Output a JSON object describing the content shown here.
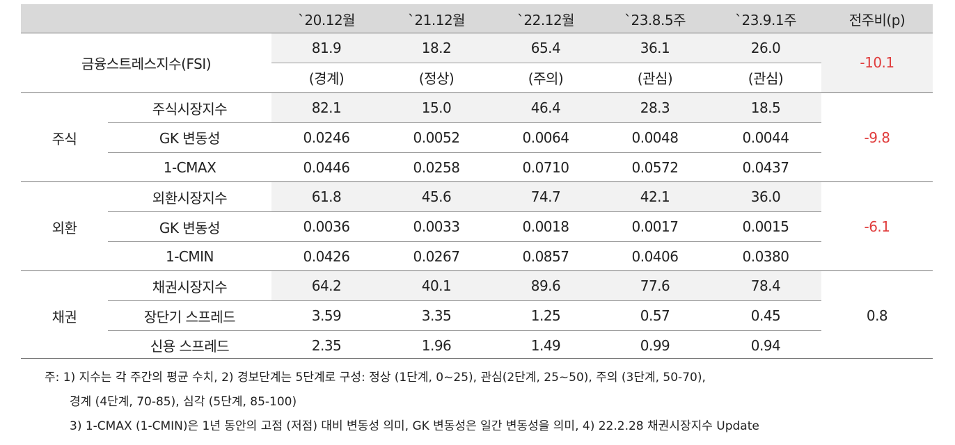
{
  "table": {
    "columns": [
      "`20.12월",
      "`21.12월",
      "`22.12월",
      "`23.8.5주",
      "`23.9.1주"
    ],
    "change_header": "전주비(p)",
    "fsi": {
      "label": "금융스트레스지수(FSI)",
      "values": [
        "81.9",
        "18.2",
        "65.4",
        "36.1",
        "26.0"
      ],
      "stages": [
        "(경계)",
        "(정상)",
        "(주의)",
        "(관심)",
        "(관심)"
      ],
      "change": "-10.1"
    },
    "sections": [
      {
        "group": "주식",
        "change": "-9.8",
        "rows": [
          {
            "label": "주식시장지수",
            "values": [
              "82.1",
              "15.0",
              "46.4",
              "28.3",
              "18.5"
            ]
          },
          {
            "label": "GK 변동성",
            "values": [
              "0.0246",
              "0.0052",
              "0.0064",
              "0.0048",
              "0.0044"
            ]
          },
          {
            "label": "1-CMAX",
            "values": [
              "0.0446",
              "0.0258",
              "0.0710",
              "0.0572",
              "0.0437"
            ]
          }
        ]
      },
      {
        "group": "외환",
        "change": "-6.1",
        "rows": [
          {
            "label": "외환시장지수",
            "values": [
              "61.8",
              "45.6",
              "74.7",
              "42.1",
              "36.0"
            ]
          },
          {
            "label": "GK 변동성",
            "values": [
              "0.0036",
              "0.0033",
              "0.0018",
              "0.0017",
              "0.0015"
            ]
          },
          {
            "label": "1-CMIN",
            "values": [
              "0.0426",
              "0.0267",
              "0.0857",
              "0.0406",
              "0.0380"
            ]
          }
        ]
      },
      {
        "group": "채권",
        "change": "0.8",
        "rows": [
          {
            "label": "채권시장지수",
            "values": [
              "64.2",
              "40.1",
              "89.6",
              "77.6",
              "78.4"
            ]
          },
          {
            "label": "장단기 스프레드",
            "values": [
              "3.59",
              "3.35",
              "1.25",
              "0.57",
              "0.45"
            ]
          },
          {
            "label": "신용 스프레드",
            "values": [
              "2.35",
              "1.96",
              "1.49",
              "0.99",
              "0.94"
            ]
          }
        ]
      }
    ],
    "notes": [
      "주: 1) 지수는 각 주간의 평균 수치, 2) 경보단계는 5단계로 구성: 정상 (1단계, 0~25), 관심(2단계, 25~50), 주의 (3단계, 50-70),",
      "경계 (4단계, 70-85), 심각 (5단계, 85-100)",
      "3) 1-CMAX (1-CMIN)은 1년 동안의 고점 (저점) 대비 변동성 의미, GK 변동성은 일간 변동성을 의미, 4) 22.2.28 채권시장지수 Update"
    ]
  }
}
